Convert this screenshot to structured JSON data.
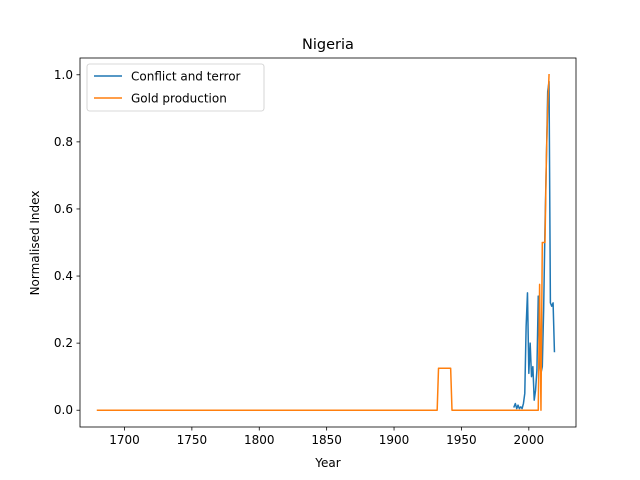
{
  "chart_data": {
    "type": "line",
    "title": "Nigeria",
    "xlabel": "Year",
    "ylabel": "Normalised Index",
    "xlim": [
      1667,
      2035
    ],
    "ylim": [
      -0.05,
      1.05
    ],
    "xticks": [
      1700,
      1750,
      1800,
      1850,
      1900,
      1950,
      2000
    ],
    "yticks": [
      0.0,
      0.2,
      0.4,
      0.6,
      0.8,
      1.0
    ],
    "ytick_labels": [
      "0.0",
      "0.2",
      "0.4",
      "0.6",
      "0.8",
      "1.0"
    ],
    "grid": false,
    "legend": "upper-left",
    "series": [
      {
        "name": "Conflict and terror",
        "color": "#1f77b4",
        "x": [
          1989,
          1990,
          1991,
          1992,
          1993,
          1994,
          1995,
          1996,
          1997,
          1998,
          1999,
          2000,
          2001,
          2002,
          2003,
          2004,
          2005,
          2006,
          2007,
          2008,
          2009,
          2010,
          2011,
          2012,
          2013,
          2014,
          2015,
          2016,
          2017,
          2018,
          2019
        ],
        "y": [
          0.01,
          0.02,
          0.005,
          0.015,
          0.005,
          0.01,
          0.005,
          0.02,
          0.05,
          0.25,
          0.35,
          0.11,
          0.2,
          0.1,
          0.13,
          0.03,
          0.06,
          0.12,
          0.34,
          0.14,
          0.11,
          0.13,
          0.3,
          0.55,
          0.74,
          0.95,
          0.98,
          0.32,
          0.31,
          0.32,
          0.175
        ]
      },
      {
        "name": "Gold production",
        "color": "#ff7f0e",
        "x": [
          1680,
          1932,
          1933,
          1942,
          1943,
          2006,
          2007,
          2008,
          2009,
          2010,
          2011,
          2012,
          2013,
          2014,
          2015
        ],
        "y": [
          0.0,
          0.0,
          0.125,
          0.125,
          0.0,
          0.0,
          0.0,
          0.375,
          0.0,
          0.5,
          0.5,
          0.5,
          0.75,
          0.9,
          1.0
        ]
      }
    ]
  }
}
